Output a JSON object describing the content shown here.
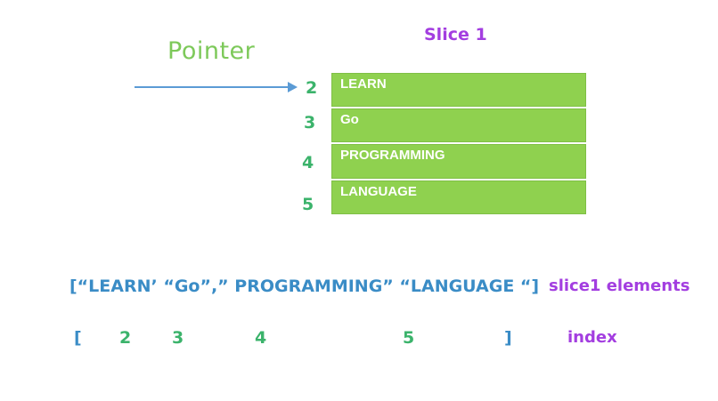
{
  "title": "Slice 1",
  "pointer_label": "Pointer",
  "rows": [
    {
      "index": "2",
      "value": "LEARN"
    },
    {
      "index": "3",
      "value": "Go"
    },
    {
      "index": "4",
      "value": "PROGRAMMING"
    },
    {
      "index": "5",
      "value": "LANGUAGE"
    }
  ],
  "array_text": "[“LEARN’ “Go”,” PROGRAMMING” “LANGUAGE “]",
  "elements_label": "slice1 elements",
  "index_row": {
    "open_bracket": "[",
    "indices": [
      "2",
      "3",
      "4",
      "5"
    ],
    "close_bracket": "]"
  },
  "index_label": "index",
  "colors": {
    "purple": "#a33ee0",
    "green_text": "#3bb36b",
    "pointer_green": "#7dc95a",
    "box_green": "#8fd14f",
    "blue": "#3a8cc6"
  }
}
